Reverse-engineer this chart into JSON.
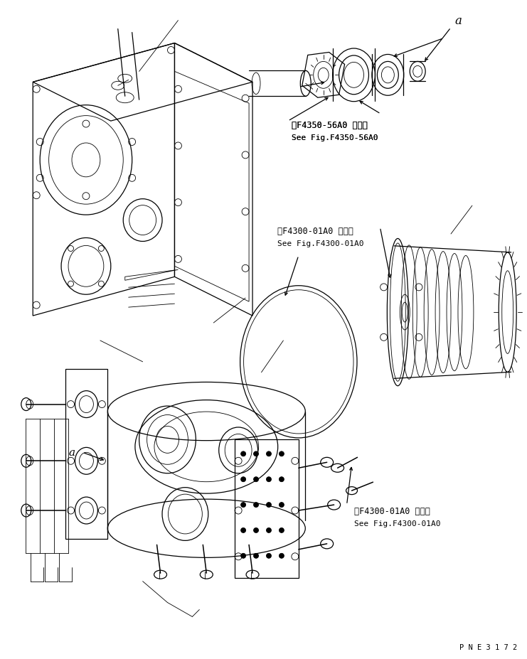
{
  "background_color": "#ffffff",
  "line_color": "#000000",
  "figure_width": 7.41,
  "figure_height": 9.28,
  "dpi": 100,
  "label_f4350_line1": "第F4350-56A0 図参照",
  "label_f4350_line2": "See Fig.F4350-56A0",
  "label_f4300_mid_line1": "第F4300-01A0 図参照",
  "label_f4300_mid_line2": "See Fig.F4300-01A0",
  "label_f4300_bot_line1": "第F4300-01A0 図参照",
  "label_f4300_bot_line2": "See Fig.F4300-01A0",
  "label_pne": "P N E 3 1 7 2",
  "label_a_top": "a",
  "label_a_bot": "a"
}
